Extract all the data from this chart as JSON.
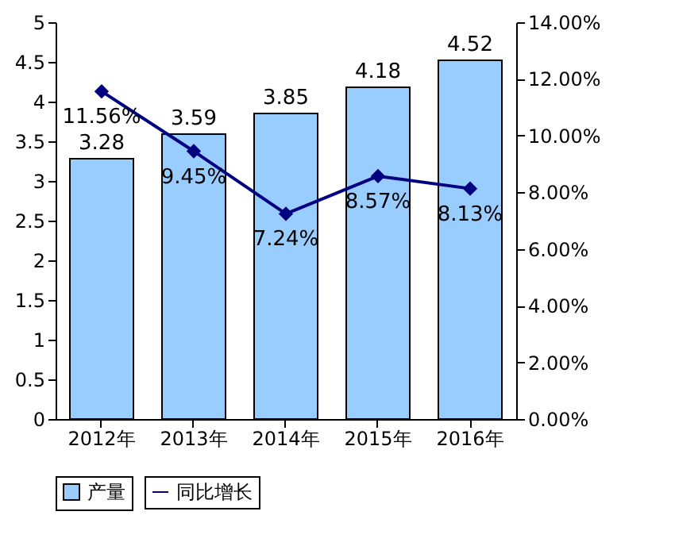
{
  "chart_data": {
    "type": "bar",
    "categories": [
      "2012年",
      "2013年",
      "2014年",
      "2015年",
      "2016年"
    ],
    "series": [
      {
        "name": "产量",
        "color": "#99ccff",
        "values": [
          3.28,
          3.59,
          3.85,
          4.18,
          4.52
        ],
        "value_labels": [
          "3.28",
          "3.59",
          "3.85",
          "4.18",
          "4.52"
        ]
      },
      {
        "name": "同比增长",
        "type": "line",
        "axis": "y2",
        "color": "#000080",
        "values": [
          11.56,
          9.45,
          7.24,
          8.57,
          8.13
        ],
        "value_labels": [
          "11.56%",
          "9.45%",
          "7.24%",
          "8.57%",
          "8.13%"
        ]
      }
    ],
    "ylim": [
      0,
      5
    ],
    "yticks": [
      0,
      0.5,
      1,
      1.5,
      2,
      2.5,
      3,
      3.5,
      4,
      4.5,
      5
    ],
    "y2lim": [
      0,
      14
    ],
    "y2ticks": [
      {
        "value": 0,
        "label": "0.00%"
      },
      {
        "value": 2,
        "label": "2.00%"
      },
      {
        "value": 4,
        "label": "4.00%"
      },
      {
        "value": 6,
        "label": "6.00%"
      },
      {
        "value": 8,
        "label": "8.00%"
      },
      {
        "value": 10,
        "label": "10.00%"
      },
      {
        "value": 12,
        "label": "12.00%"
      },
      {
        "value": 14,
        "label": "14.00%"
      }
    ],
    "marker": "diamond",
    "grid": false,
    "legend": "bottom"
  }
}
